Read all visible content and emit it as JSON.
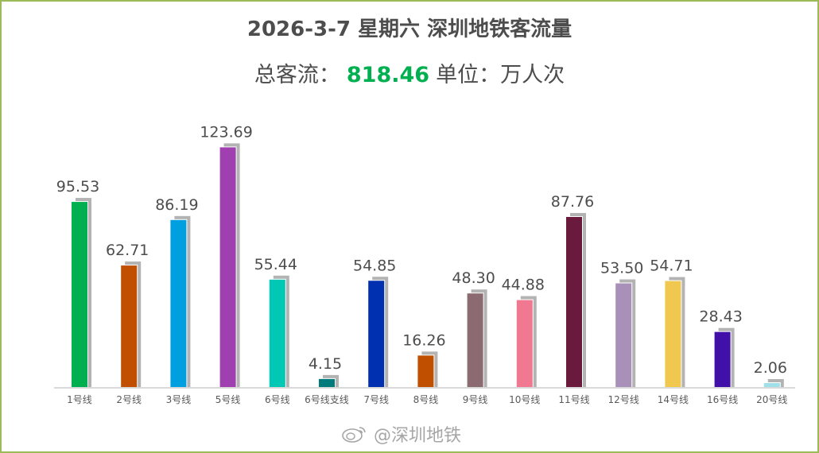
{
  "header": {
    "title": "2026-3-7 星期六  深圳地铁客流量",
    "total_label": "总客流：",
    "total_value": "818.46",
    "unit_label": "单位：万人次"
  },
  "watermark": {
    "text": "@深圳地铁",
    "icon": "weibo-icon"
  },
  "chart_data": {
    "type": "bar",
    "categories": [
      "1号线",
      "2号线",
      "3号线",
      "5号线",
      "6号线",
      "6号线支线",
      "7号线",
      "8号线",
      "9号线",
      "10号线",
      "11号线",
      "12号线",
      "14号线",
      "16号线",
      "20号线"
    ],
    "values": [
      95.53,
      62.71,
      86.19,
      123.69,
      55.44,
      4.15,
      54.85,
      16.26,
      48.3,
      44.88,
      87.76,
      53.5,
      54.71,
      28.43,
      2.06
    ],
    "value_labels": [
      "95.53",
      "62.71",
      "86.19",
      "123.69",
      "55.44",
      "4.15",
      "54.85",
      "16.26",
      "48.30",
      "44.88",
      "87.76",
      "53.50",
      "54.71",
      "28.43",
      "2.06"
    ],
    "colors": [
      "#00b050",
      "#c05000",
      "#00a0e0",
      "#a040b0",
      "#00c8b4",
      "#007a7a",
      "#0030b0",
      "#c05000",
      "#8c6a72",
      "#f07890",
      "#6a1a3c",
      "#a890b8",
      "#f0c850",
      "#4010a8",
      "#a0e0e8"
    ],
    "shadow_color": "#b3b3b3",
    "ylim": [
      0,
      130
    ],
    "grid": false
  }
}
